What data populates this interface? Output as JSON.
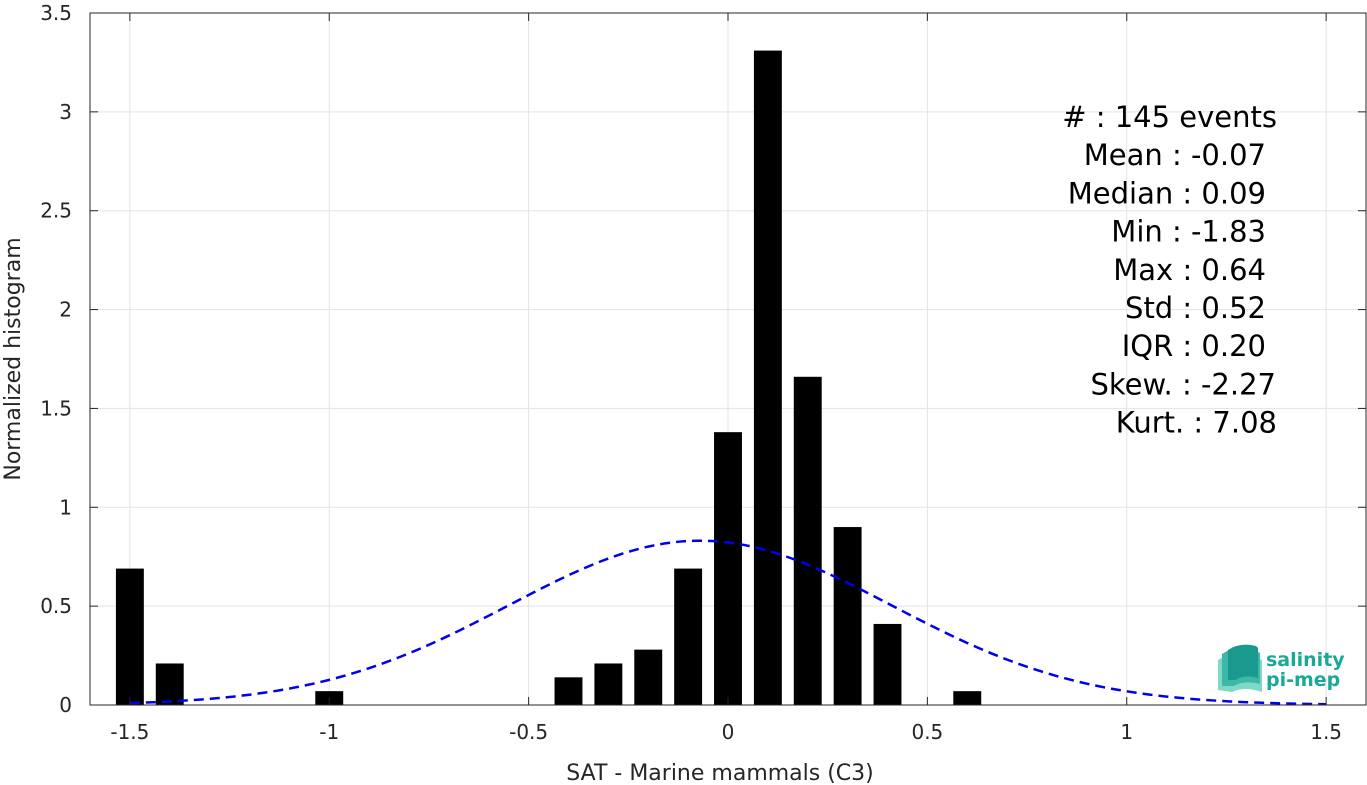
{
  "chart_data": {
    "type": "bar",
    "xlabel": "SAT - Marine mammals (C3)",
    "ylabel": "Normalized histogram",
    "xlim": [
      -1.6,
      1.6
    ],
    "ylim": [
      0,
      3.5
    ],
    "xticks": [
      -1.5,
      -1,
      -0.5,
      0,
      0.5,
      1,
      1.5
    ],
    "xtick_labels": [
      "-1.5",
      "-1",
      "-0.5",
      "0",
      "0.5",
      "1",
      "1.5"
    ],
    "yticks": [
      0,
      0.5,
      1,
      1.5,
      2,
      2.5,
      3,
      3.5
    ],
    "ytick_labels": [
      "0",
      "0.5",
      "1",
      "1.5",
      "2",
      "2.5",
      "3",
      "3.5"
    ],
    "grid": true,
    "bar_width": 0.07,
    "bars": [
      {
        "x": -1.5,
        "value": 0.69
      },
      {
        "x": -1.4,
        "value": 0.21
      },
      {
        "x": -1.0,
        "value": 0.07
      },
      {
        "x": -0.4,
        "value": 0.14
      },
      {
        "x": -0.3,
        "value": 0.21
      },
      {
        "x": -0.2,
        "value": 0.28
      },
      {
        "x": -0.1,
        "value": 0.69
      },
      {
        "x": 0.0,
        "value": 1.38
      },
      {
        "x": 0.1,
        "value": 3.31
      },
      {
        "x": 0.2,
        "value": 1.66
      },
      {
        "x": 0.3,
        "value": 0.9
      },
      {
        "x": 0.4,
        "value": 0.41
      },
      {
        "x": 0.6,
        "value": 0.07
      }
    ],
    "fit_curve": {
      "type": "normal",
      "mean": -0.07,
      "std": 0.48,
      "x_range": [
        -1.5,
        1.5
      ],
      "color": "#0000ee",
      "style": "dashed"
    },
    "bar_color": "#000000",
    "stats": [
      {
        "label": "#  : 145 events"
      },
      {
        "label": "Mean : -0.07"
      },
      {
        "label": "Median : 0.09"
      },
      {
        "label": "Min : -1.83"
      },
      {
        "label": "Max : 0.64"
      },
      {
        "label": "Std : 0.52"
      },
      {
        "label": "IQR : 0.20"
      },
      {
        "label": "Skew. : -2.27"
      },
      {
        "label": "Kurt. : 7.08"
      }
    ]
  },
  "logo": {
    "line1": "salinity",
    "line2": "pi-mep"
  }
}
